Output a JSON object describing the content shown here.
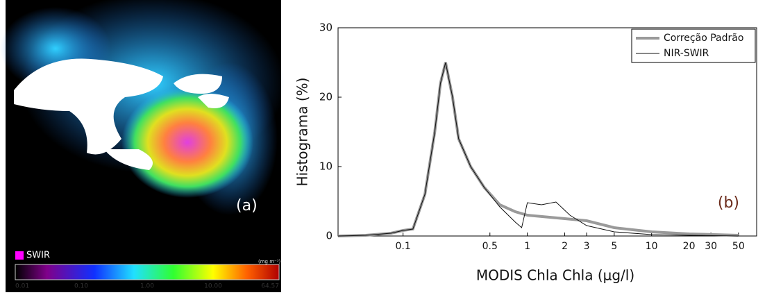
{
  "panel_a": {
    "label": "(a)",
    "legend": "SWIR",
    "unit": "(mg m⁻³)",
    "colorbar_labels": [
      "0.01",
      "0.10",
      "1.00",
      "10.00",
      "64.57"
    ]
  },
  "chart_data": {
    "type": "line",
    "annotation": "(b)",
    "xlabel": "MODIS Chla Chla (µg/l)",
    "ylabel": "Histograma (%)",
    "xscale": "log",
    "xlim": [
      0.03,
      70
    ],
    "xticks": [
      0.1,
      0.5,
      1,
      2,
      3,
      5,
      10,
      20,
      30,
      50
    ],
    "ylim": [
      0,
      30
    ],
    "yticks": [
      0,
      10,
      20,
      30
    ],
    "legend": "upper right",
    "series": [
      {
        "name": "Correção Padrão",
        "color": "#9a9a9a",
        "width": 4,
        "x": [
          0.03,
          0.05,
          0.08,
          0.1,
          0.12,
          0.15,
          0.18,
          0.2,
          0.22,
          0.25,
          0.28,
          0.35,
          0.45,
          0.6,
          0.8,
          1,
          2,
          3,
          5,
          10,
          20,
          50
        ],
        "values": [
          0,
          0.1,
          0.4,
          0.8,
          1,
          6,
          15,
          22,
          25,
          20,
          14,
          10,
          7,
          4.5,
          3.5,
          3,
          2.5,
          2.2,
          1.2,
          0.6,
          0.3,
          0.1
        ]
      },
      {
        "name": "NIR-SWIR",
        "color": "#111111",
        "width": 1,
        "x": [
          0.03,
          0.05,
          0.08,
          0.1,
          0.12,
          0.15,
          0.18,
          0.2,
          0.22,
          0.25,
          0.28,
          0.35,
          0.45,
          0.6,
          0.8,
          0.9,
          1,
          1.3,
          1.7,
          2.2,
          3,
          5,
          10,
          20,
          50
        ],
        "values": [
          0,
          0.1,
          0.4,
          0.8,
          1,
          6,
          15,
          22,
          25,
          20,
          14,
          10,
          7,
          4.2,
          2,
          1.2,
          4.8,
          4.5,
          4.9,
          3,
          1.5,
          0.6,
          0.2,
          0.1,
          0
        ]
      }
    ]
  }
}
